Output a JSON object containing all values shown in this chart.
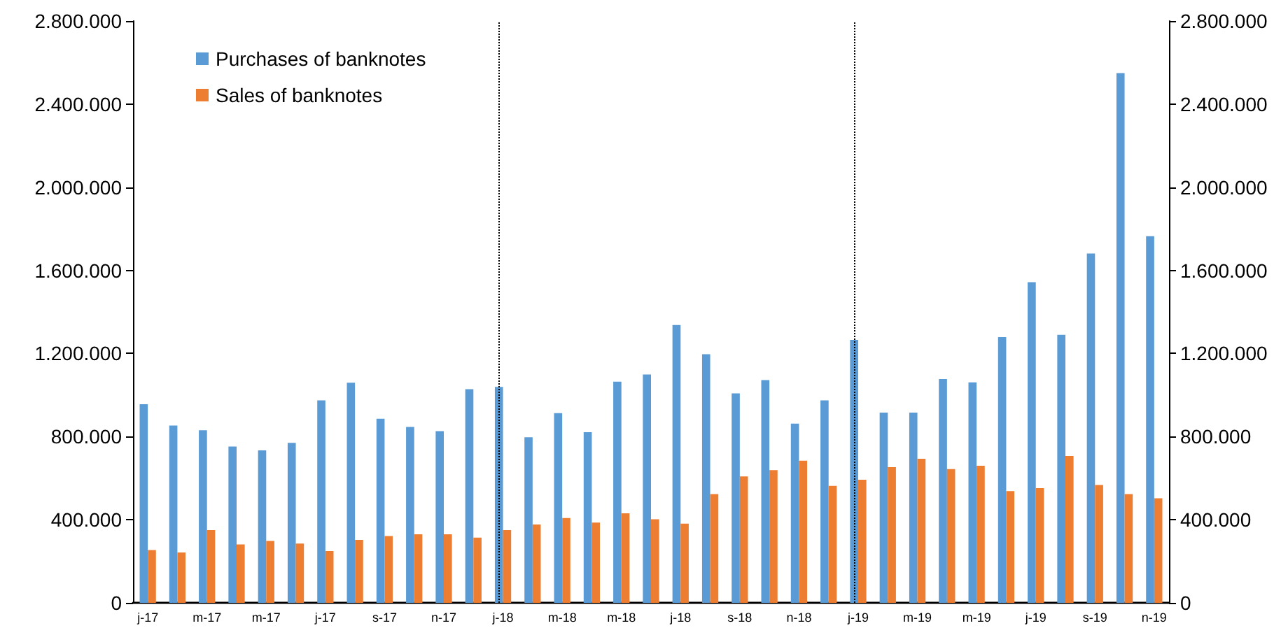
{
  "chart_data": {
    "type": "bar",
    "categories": [
      "j-17",
      null,
      "m-17",
      null,
      "m-17",
      null,
      "j-17",
      null,
      "s-17",
      null,
      "n-17",
      null,
      "j-18",
      null,
      "m-18",
      null,
      "m-18",
      null,
      "j-18",
      null,
      "s-18",
      null,
      "n-18",
      null,
      "j-19",
      null,
      "m-19",
      null,
      "m-19",
      null,
      "j-19",
      null,
      "s-19",
      null,
      "n-19"
    ],
    "series": [
      {
        "name": "Purchases of banknotes",
        "color": "#5b9bd5",
        "values": [
          956000,
          853000,
          830000,
          752000,
          734000,
          770000,
          974000,
          1059000,
          886000,
          846000,
          826000,
          1028000,
          1039000,
          797000,
          913000,
          821000,
          1064000,
          1099000,
          1337000,
          1196000,
          1008000,
          1072000,
          862000,
          974000,
          1265000,
          915000,
          915000,
          1077000,
          1061000,
          1279000,
          1543000,
          1290000,
          1681000,
          2549000,
          1764000
        ]
      },
      {
        "name": "Sales of banknotes",
        "color": "#ed7d31",
        "values": [
          254000,
          242000,
          350000,
          281000,
          298000,
          285000,
          249000,
          303000,
          321000,
          330000,
          330000,
          314000,
          350000,
          377000,
          408000,
          386000,
          431000,
          402000,
          381000,
          523000,
          608000,
          639000,
          684000,
          563000,
          592000,
          653000,
          693000,
          644000,
          660000,
          538000,
          552000,
          707000,
          567000,
          523000,
          503000
        ]
      }
    ],
    "ylim": [
      0,
      2800000
    ],
    "yticks": [
      0,
      {
        "value": 400000,
        "label": "400.000"
      },
      {
        "value": 800000,
        "label": "800.000"
      },
      {
        "value": 1200000,
        "label": "1.200.000"
      },
      {
        "value": 1600000,
        "label": "1.600.000"
      },
      {
        "value": 2000000,
        "label": "2.000.000"
      },
      {
        "value": 2400000,
        "label": "2.400.000"
      },
      {
        "value": 2800000,
        "label": "2.800.000"
      }
    ],
    "y2lim": [
      0,
      2800000
    ],
    "y2ticks": [
      0,
      {
        "value": 400000,
        "label": "400.000"
      },
      {
        "value": 800000,
        "label": "800.000"
      },
      {
        "value": 1200000,
        "label": "1.200.000"
      },
      {
        "value": 1600000,
        "label": "1.600.000"
      },
      {
        "value": 2000000,
        "label": "2.000.000"
      },
      {
        "value": 2400000,
        "label": "2.400.000"
      },
      {
        "value": 2800000,
        "label": "2.800.000"
      }
    ],
    "ref_lines": [
      {
        "axis": "x",
        "value": "j-18",
        "line_style": "dotted",
        "color": "#000000"
      },
      {
        "axis": "x",
        "value": "j-19",
        "line_style": "dotted",
        "color": "#000000"
      }
    ],
    "grid": false,
    "legend": "top left"
  }
}
